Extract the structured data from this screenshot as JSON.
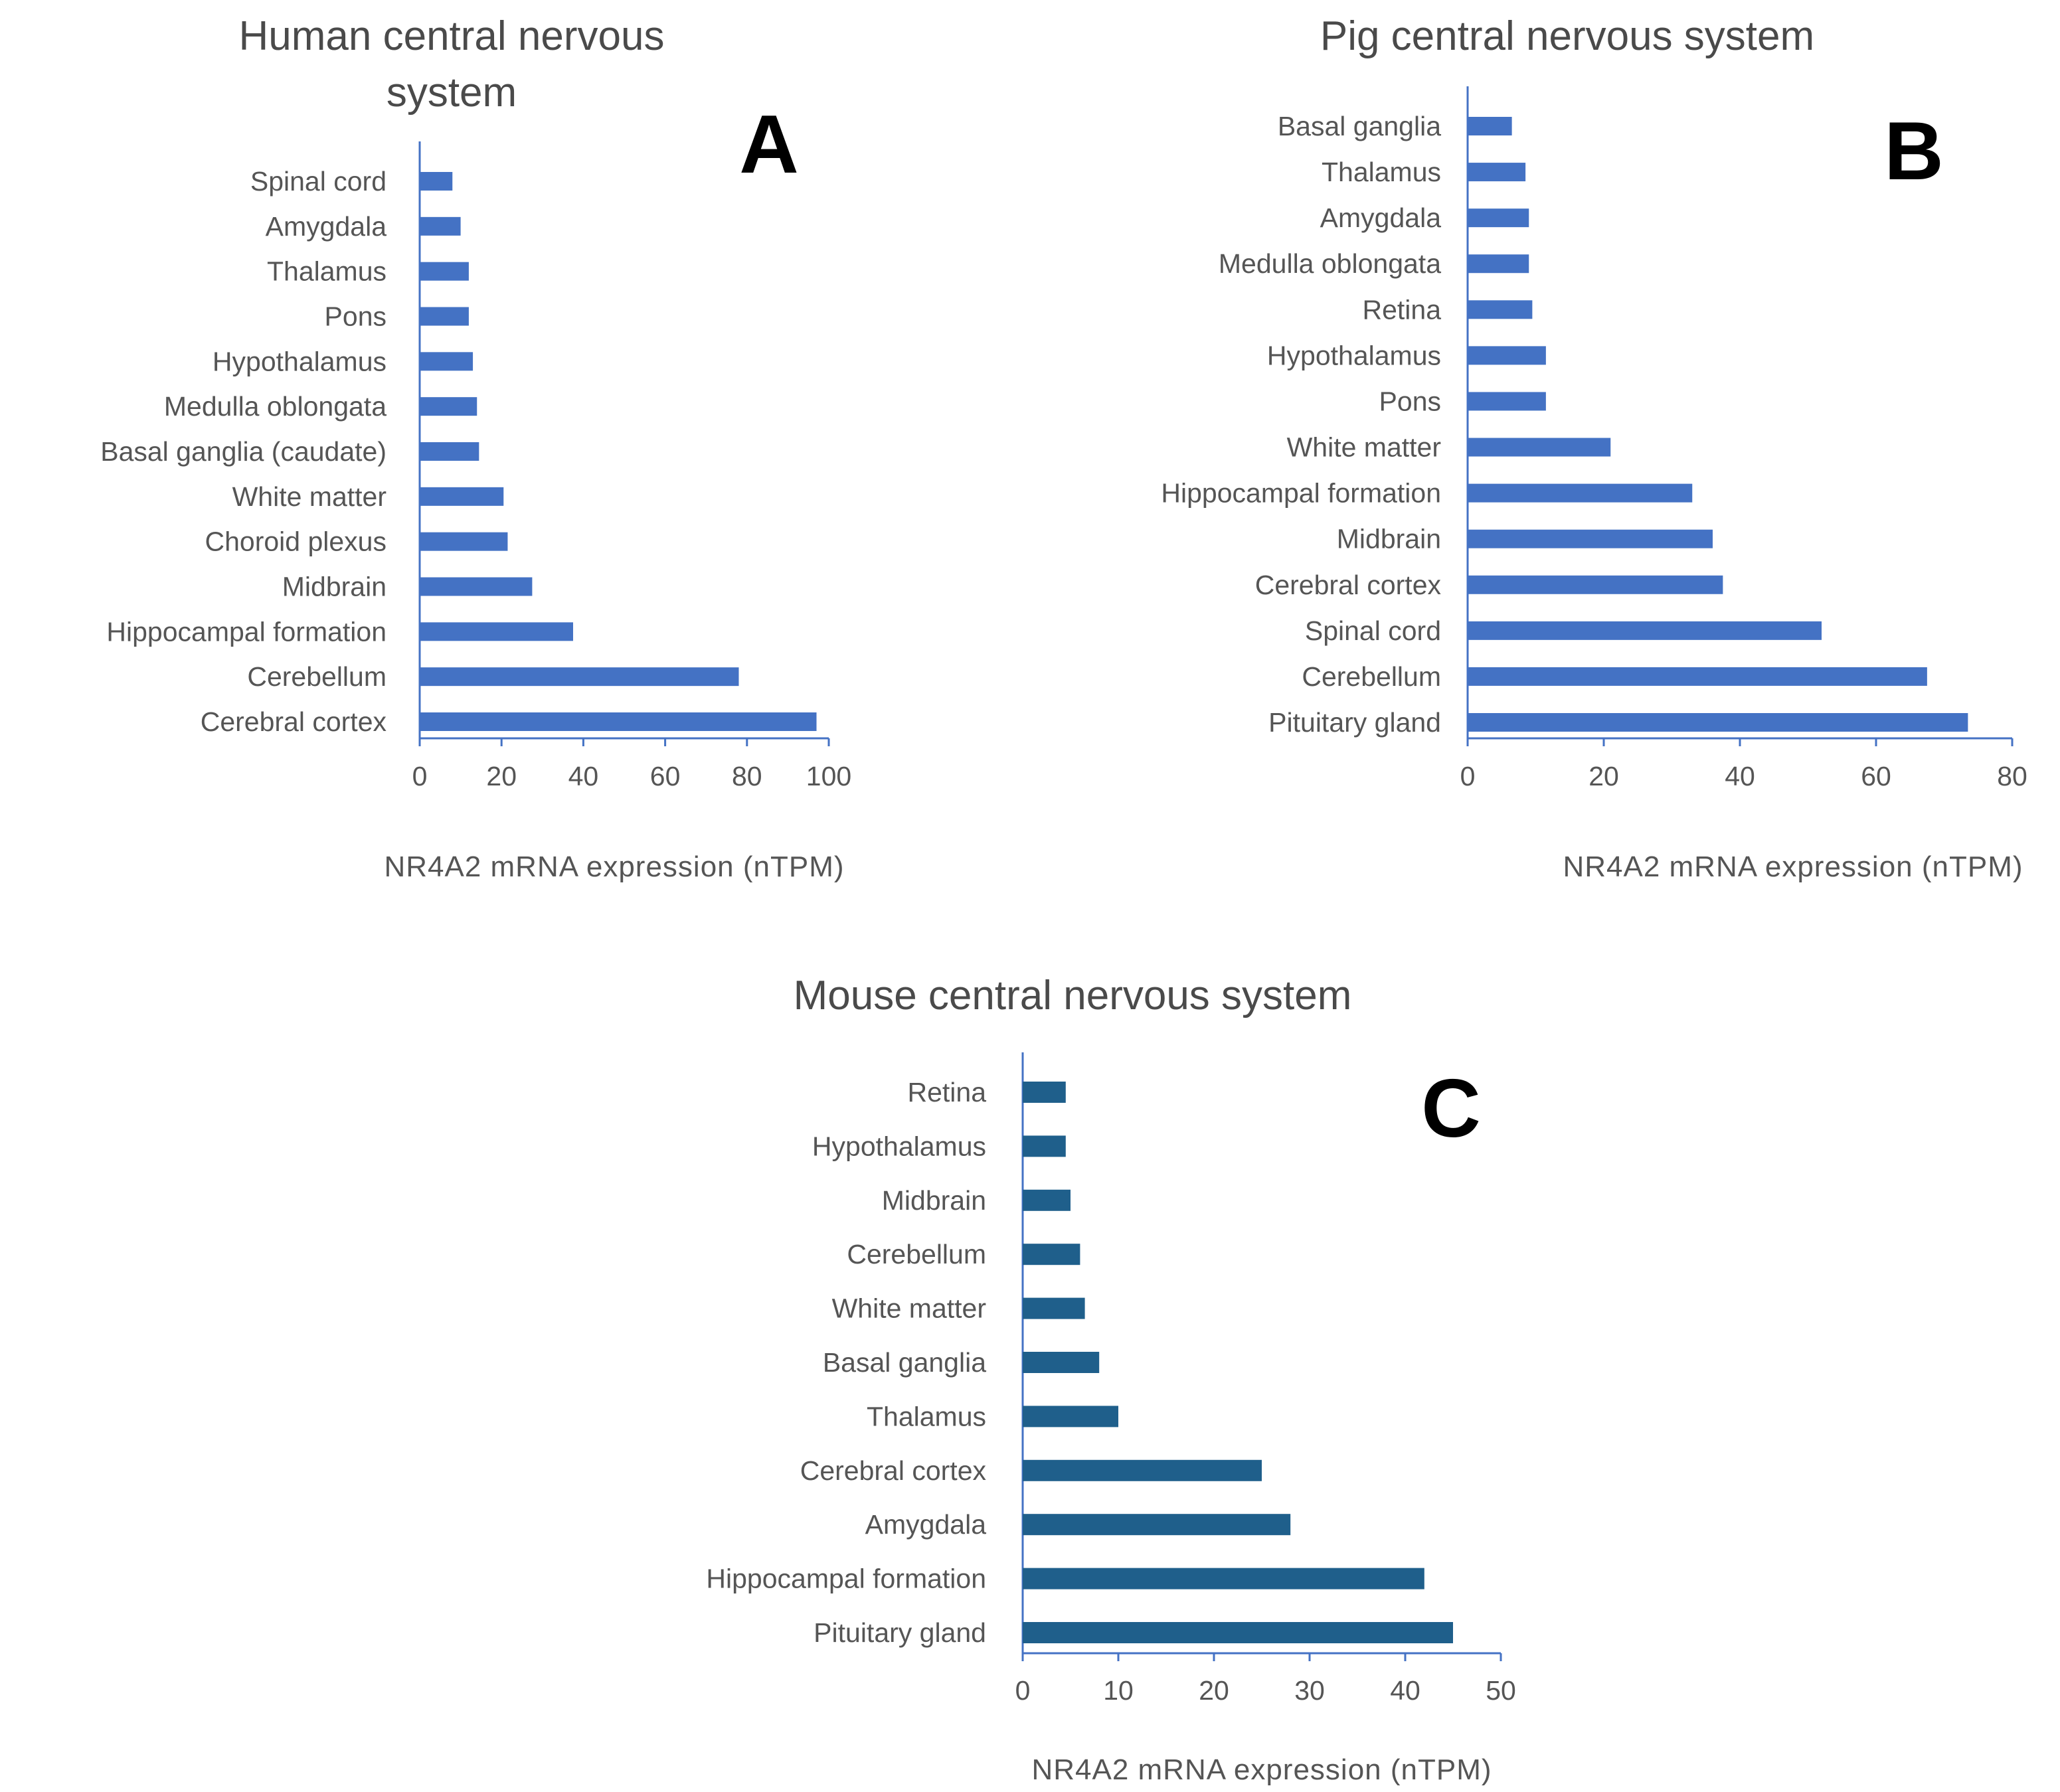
{
  "chart_data": [
    {
      "type": "bar",
      "orientation": "horizontal",
      "panel_label": "A",
      "title_lines": [
        "Human central nervous",
        "system"
      ],
      "categories": [
        "Spinal cord",
        "Amygdala",
        "Thalamus",
        "Pons",
        "Hypothalamus",
        "Medulla oblongata",
        "Basal ganglia (caudate)",
        "White matter",
        "Choroid plexus",
        "Midbrain",
        "Hippocampal formation",
        "Cerebellum",
        "Cerebral cortex"
      ],
      "values": [
        8,
        10,
        12,
        12,
        13,
        14,
        14.5,
        20.5,
        21.5,
        27.5,
        37.5,
        78,
        97
      ],
      "xlim": [
        0,
        100
      ],
      "xticks": [
        "0",
        "20",
        "40",
        "60",
        "80",
        "100"
      ],
      "xlabel": "NR4A2 mRNA expression (nTPM)",
      "color": "#4472c4"
    },
    {
      "type": "bar",
      "orientation": "horizontal",
      "panel_label": "B",
      "title_lines": [
        "Pig central nervous system"
      ],
      "categories": [
        "Basal ganglia",
        "Thalamus",
        "Amygdala",
        "Medulla oblongata",
        "Retina",
        "Hypothalamus",
        "Pons",
        "White matter",
        "Hippocampal formation",
        "Midbrain",
        "Cerebral cortex",
        "Spinal cord",
        "Cerebellum",
        "Pituitary gland"
      ],
      "values": [
        6.5,
        8.5,
        9,
        9,
        9.5,
        11.5,
        11.5,
        21,
        33,
        36,
        37.5,
        52,
        67.5,
        73.5
      ],
      "xlim": [
        0,
        80
      ],
      "xticks": [
        "0",
        "20",
        "40",
        "60",
        "80"
      ],
      "xlabel": "NR4A2 mRNA expression (nTPM)",
      "color": "#4472c4"
    },
    {
      "type": "bar",
      "orientation": "horizontal",
      "panel_label": "C",
      "title_lines": [
        "Mouse central nervous system"
      ],
      "categories": [
        "Retina",
        "Hypothalamus",
        "Midbrain",
        "Cerebellum",
        "White matter",
        "Basal ganglia",
        "Thalamus",
        "Cerebral cortex",
        "Amygdala",
        "Hippocampal formation",
        "Pituitary gland"
      ],
      "values": [
        4.5,
        4.5,
        5,
        6,
        6.5,
        8,
        10,
        25,
        28,
        42,
        45
      ],
      "xlim": [
        0,
        50
      ],
      "xticks": [
        "0",
        "10",
        "20",
        "30",
        "40",
        "50"
      ],
      "xlabel": "NR4A2 mRNA expression (nTPM)",
      "color": "#1f5f8b"
    }
  ]
}
